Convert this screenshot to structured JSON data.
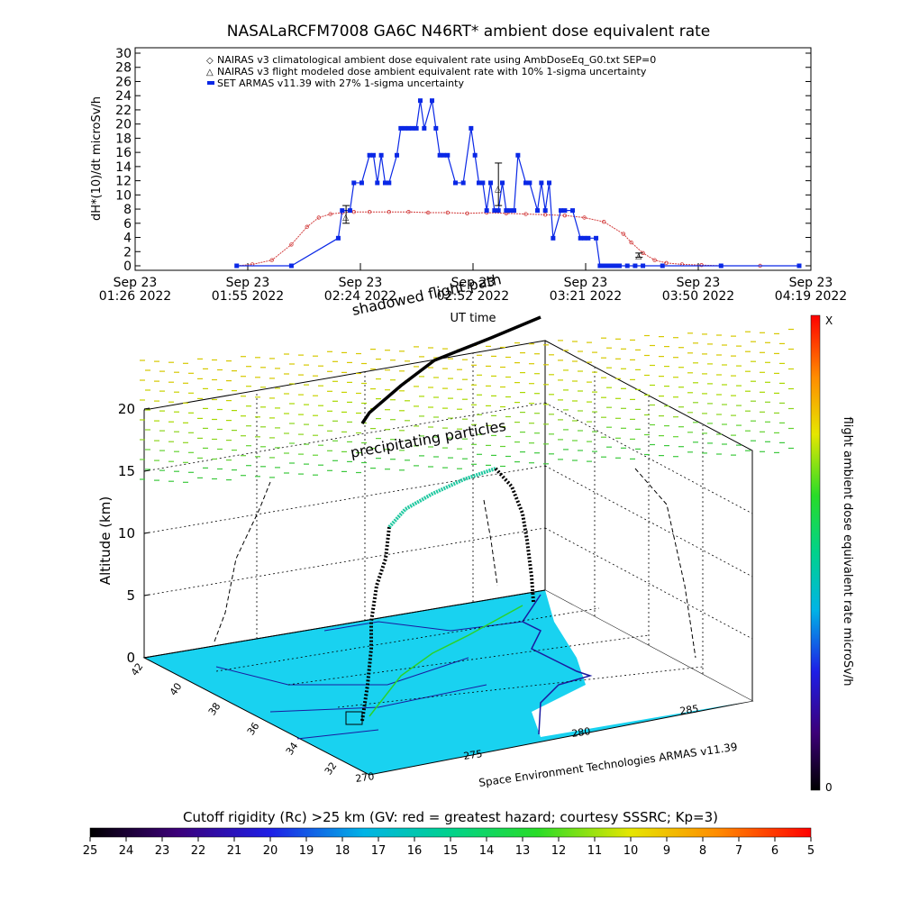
{
  "title": "NASALaRCFM7008  GA6C N46RT* ambient dose equivalent rate",
  "colors": {
    "nairas_clim": "#d23c3c",
    "armas": "#0a28e6",
    "nairas_flight": "#000000"
  },
  "chart_data": [
    {
      "type": "line",
      "ylabel": "dH*(10)/dt microSv/h",
      "xlabel": "UT time",
      "ylim": [
        0,
        30
      ],
      "yticks": [
        0,
        2,
        4,
        6,
        8,
        10,
        12,
        14,
        16,
        18,
        20,
        22,
        24,
        26,
        28,
        30
      ],
      "xticks": [
        {
          "line1": "Sep 23",
          "line2": "01:26 2022"
        },
        {
          "line1": "Sep 23",
          "line2": "01:55 2022"
        },
        {
          "line1": "Sep 23",
          "line2": "02:24 2022"
        },
        {
          "line1": "Sep 23",
          "line2": "02:52 2022"
        },
        {
          "line1": "Sep 23",
          "line2": "03:21 2022"
        },
        {
          "line1": "Sep 23",
          "line2": "03:50 2022"
        },
        {
          "line1": "Sep 23",
          "line2": "04:19 2022"
        }
      ],
      "xlim_minutes": [
        0,
        173
      ],
      "legend_position": "top",
      "legend": [
        "NAIRAS v3 climatological ambient dose equivalent rate using AmbDoseEq_G0.txt SEP=0",
        "NAIRAS v3 flight modeled dose ambient equivalent rate with 10% 1-sigma uncertainty",
        "SET ARMAS v11.39 with 27% 1-sigma uncertainty"
      ],
      "series": [
        {
          "name": "NAIRAS v3 climatological ambient dose equivalent rate using AmbDoseEq_G0.txt SEP=0",
          "x": [
            26,
            30,
            35,
            40,
            44,
            47,
            50,
            53,
            56,
            60,
            65,
            70,
            75,
            80,
            85,
            90,
            95,
            100,
            105,
            110,
            115,
            120,
            125,
            127,
            130,
            133,
            136,
            140,
            145,
            150,
            160,
            170
          ],
          "y": [
            0,
            0.2,
            0.8,
            3,
            5.5,
            6.8,
            7.3,
            7.5,
            7.6,
            7.6,
            7.6,
            7.6,
            7.5,
            7.5,
            7.4,
            7.5,
            7.4,
            7.3,
            7.2,
            7.1,
            6.8,
            6.2,
            4.5,
            3.3,
            1.8,
            0.8,
            0.4,
            0.2,
            0.1,
            0,
            0,
            0
          ]
        },
        {
          "name": "SET ARMAS v11.39 with 27% 1-sigma uncertainty",
          "x": [
            26,
            40,
            52,
            53,
            55,
            56,
            58,
            60,
            61,
            62,
            63,
            64,
            65,
            67,
            68,
            69,
            70,
            71,
            72,
            73,
            74,
            76,
            77,
            78,
            79,
            80,
            82,
            84,
            86,
            87,
            88,
            89,
            90,
            91,
            92,
            93,
            94,
            95,
            96,
            97,
            98,
            100,
            101,
            103,
            104,
            105,
            106,
            107,
            109,
            110,
            112,
            114,
            115,
            116,
            118,
            119,
            120,
            121,
            122,
            123,
            124,
            126,
            128,
            130,
            135,
            150,
            170
          ],
          "y": [
            0,
            0,
            3.9,
            7.8,
            7.8,
            11.7,
            11.7,
            15.6,
            15.6,
            11.7,
            15.6,
            11.7,
            11.7,
            15.6,
            19.4,
            19.4,
            19.4,
            19.4,
            19.4,
            23.3,
            19.4,
            23.3,
            19.4,
            15.6,
            15.6,
            15.6,
            11.7,
            11.7,
            19.4,
            15.6,
            11.7,
            11.7,
            7.8,
            11.7,
            7.8,
            7.8,
            11.7,
            7.8,
            7.8,
            7.8,
            15.6,
            11.7,
            11.7,
            7.8,
            11.7,
            7.8,
            11.7,
            3.9,
            7.8,
            7.8,
            7.8,
            3.9,
            3.9,
            3.9,
            3.9,
            0,
            0,
            0,
            0,
            0,
            0,
            0,
            0,
            0,
            0,
            0,
            0
          ]
        },
        {
          "name": "NAIRAS v3 flight modeled dose ambient equivalent rate with 10% 1-sigma uncertainty",
          "x": [
            54,
            93,
            129
          ],
          "y": [
            7.0,
            11.0,
            1.5
          ],
          "err_low": [
            6.0,
            8.5,
            1.2
          ],
          "err_high": [
            8.5,
            14.5,
            1.8
          ]
        }
      ]
    },
    {
      "type": "scatter",
      "ylabel": "Altitude (km)",
      "zticks": [
        0,
        5,
        10,
        15,
        20
      ],
      "lat_ticks": [
        42,
        40,
        38,
        36,
        34,
        32
      ],
      "lon_ticks": [
        270,
        275,
        280,
        285
      ],
      "colorbar_label": "flight ambient dose equivalent rate microSv/h",
      "colorbar_top": "X",
      "colorbar_bottom": "0",
      "annotations": [
        "shadowed flight path",
        "precipitating particles"
      ],
      "credit": "Space Environment Technologies ARMAS v11.39"
    }
  ],
  "cutoff": {
    "title": "Cutoff rigidity (Rc) >25 km (GV: red = greatest hazard; courtesy SSSRC; Kp=3)",
    "ticks": [
      "25",
      "24",
      "23",
      "22",
      "21",
      "20",
      "19",
      "18",
      "17",
      "16",
      "15",
      "14",
      "13",
      "12",
      "11",
      "10",
      "9",
      "8",
      "7",
      "6",
      "5"
    ]
  }
}
